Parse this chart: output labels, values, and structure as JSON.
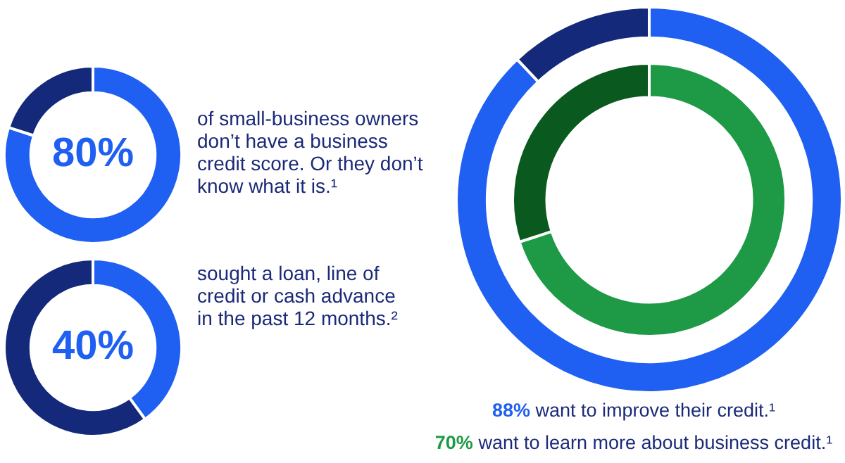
{
  "chart_data": [
    {
      "type": "donut",
      "categories": [
        null,
        null
      ],
      "values": [
        80,
        20
      ],
      "colors": [
        "#1f60f2",
        "#14297a"
      ],
      "value_labels": [
        "80%",
        null
      ],
      "annotations": [
        "of small-business owners don’t have a business credit score. Or they don’t know what it is.¹"
      ]
    },
    {
      "type": "donut",
      "categories": [
        null,
        null
      ],
      "values": [
        40,
        60
      ],
      "colors": [
        "#1f60f2",
        "#14297a"
      ],
      "value_labels": [
        "40%",
        null
      ],
      "annotations": [
        "sought a loan, line of credit or cash advance in the past 12 months.²"
      ]
    },
    {
      "type": "donut",
      "categories": [
        null,
        null
      ],
      "series": [
        {
          "values": [
            88,
            12
          ],
          "colors": [
            "#1f60f2",
            "#14297a"
          ]
        },
        {
          "values": [
            70,
            30
          ],
          "colors": [
            "#1e9a46",
            "#0a5a1f"
          ]
        }
      ],
      "annotations": [
        "88% want to improve their credit.¹",
        "70% want to learn more about business credit.¹"
      ]
    }
  ]
}
